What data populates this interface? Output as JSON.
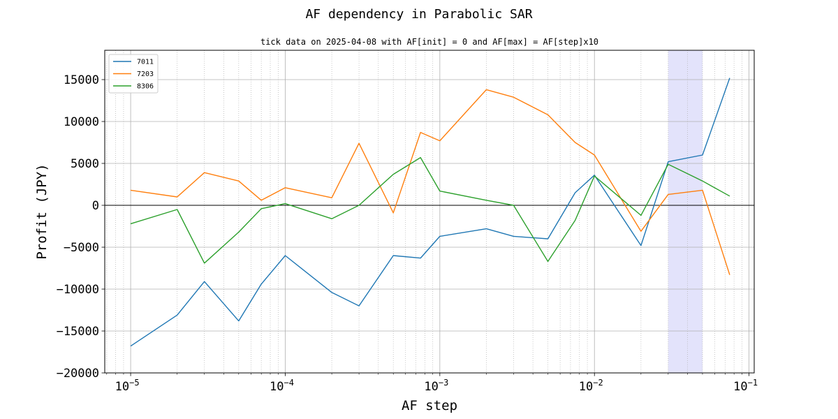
{
  "chart_data": {
    "type": "line",
    "title": "AF dependency in Parabolic SAR",
    "subtitle": "tick data on 2025-04-08 with AF[init] = 0 and AF[max] = AF[step]x10",
    "xlabel": "AF step",
    "ylabel": "Profit (JPY)",
    "xscale": "log",
    "xlim": [
      6.8e-06,
      0.108
    ],
    "ylim": [
      -20000,
      18500
    ],
    "yticks": [
      15000,
      10000,
      5000,
      0,
      -5000,
      -10000,
      -15000,
      -20000
    ],
    "ytick_labels": [
      "15000",
      "10000",
      "5000",
      "0",
      "−5000",
      "−10000",
      "−15000",
      "−20000"
    ],
    "xticks": [
      {
        "value": 1e-05,
        "base": "10",
        "exp": "−5"
      },
      {
        "value": 0.0001,
        "base": "10",
        "exp": "−4"
      },
      {
        "value": 0.001,
        "base": "10",
        "exp": "−3"
      },
      {
        "value": 0.01,
        "base": "10",
        "exp": "−2"
      },
      {
        "value": 0.1,
        "base": "10",
        "exp": "−1"
      }
    ],
    "grid": true,
    "zero_line": true,
    "highlight_band": {
      "x_from": 0.03,
      "x_to": 0.05,
      "color": "#e3e3fb"
    },
    "legend": "top-left",
    "x": [
      1e-05,
      2e-05,
      3e-05,
      5e-05,
      7e-05,
      0.0001,
      0.0002,
      0.0003,
      0.0005,
      0.00075,
      0.001,
      0.002,
      0.003,
      0.005,
      0.0075,
      0.01,
      0.02,
      0.03,
      0.05,
      0.075
    ],
    "series": [
      {
        "name": "7011",
        "color": "#1f77b4",
        "values": [
          -16800,
          -13100,
          -9100,
          -13800,
          -9400,
          -6000,
          -10400,
          -12000,
          -6000,
          -6300,
          -3700,
          -2800,
          -3700,
          -4000,
          1500,
          3600,
          -4800,
          5200,
          6000,
          15200
        ]
      },
      {
        "name": "7203",
        "color": "#ff7f0e",
        "values": [
          1800,
          1000,
          3900,
          2900,
          600,
          2100,
          900,
          7400,
          -900,
          8700,
          7700,
          13800,
          12900,
          10800,
          7500,
          6000,
          -3100,
          1300,
          1800,
          -8300
        ]
      },
      {
        "name": "8306",
        "color": "#2ca02c",
        "values": [
          -2200,
          -500,
          -6900,
          -3200,
          -400,
          200,
          -1600,
          0,
          3700,
          5700,
          1700,
          600,
          0,
          -6700,
          -1800,
          3500,
          -1200,
          4900,
          2900,
          1100
        ]
      }
    ]
  }
}
